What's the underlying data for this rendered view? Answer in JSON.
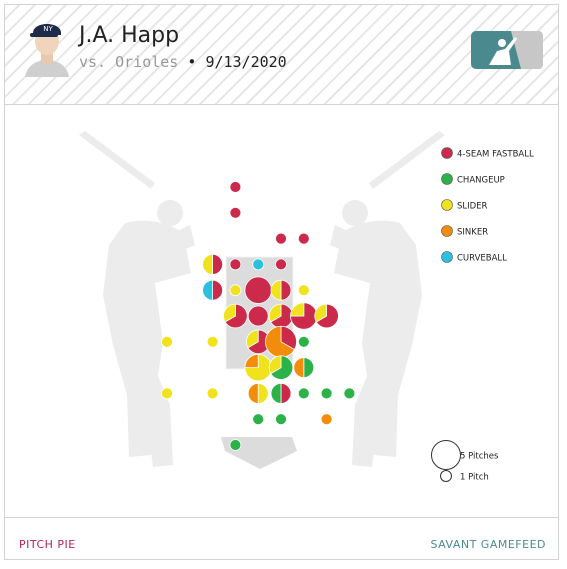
{
  "header": {
    "player_name": "J.A. Happ",
    "matchup": "vs. Orioles",
    "separator": "•",
    "date": "9/13/2020"
  },
  "footer": {
    "left_link": "PITCH PIE",
    "right_link": "SAVANT GAMEFEED"
  },
  "colors": {
    "four_seam": "#cc2a4b",
    "changeup": "#2db24a",
    "slider": "#f0e21c",
    "sinker": "#f28c0a",
    "curveball": "#2bc0de",
    "silhouette": "#ececec",
    "brand": "#4a8a8f"
  },
  "icons": {
    "avatar": "player-headshot-icon",
    "logo": "mlb-logo-icon",
    "batter": "batter-silhouette-icon"
  },
  "chart_data": {
    "type": "scatter",
    "title": "",
    "legend_position": "top-right",
    "series": [
      {
        "key": "four_seam",
        "name": "4-SEAM FASTBALL"
      },
      {
        "key": "changeup",
        "name": "CHANGEUP"
      },
      {
        "key": "slider",
        "name": "SLIDER"
      },
      {
        "key": "sinker",
        "name": "SINKER"
      },
      {
        "key": "curveball",
        "name": "CURVEBALL"
      }
    ],
    "grid": {
      "cols": 10,
      "rows": 13
    },
    "size_legend": [
      {
        "pitches": 5,
        "label": "5 Pitches"
      },
      {
        "pitches": 1,
        "label": "1 Pitch"
      }
    ],
    "pitch_bins": [
      {
        "col": 3,
        "row": 0,
        "counts": {
          "four_seam": 1
        }
      },
      {
        "col": 3,
        "row": 1,
        "counts": {
          "four_seam": 1
        }
      },
      {
        "col": 5,
        "row": 2,
        "counts": {
          "four_seam": 1
        }
      },
      {
        "col": 6,
        "row": 2,
        "counts": {
          "four_seam": 1
        }
      },
      {
        "col": 2,
        "row": 3,
        "counts": {
          "four_seam": 1,
          "slider": 1
        }
      },
      {
        "col": 3,
        "row": 3,
        "counts": {
          "four_seam": 1
        }
      },
      {
        "col": 4,
        "row": 3,
        "counts": {
          "curveball": 1
        }
      },
      {
        "col": 5,
        "row": 3,
        "counts": {
          "four_seam": 1
        }
      },
      {
        "col": 2,
        "row": 4,
        "counts": {
          "four_seam": 1,
          "curveball": 1
        }
      },
      {
        "col": 3,
        "row": 4,
        "counts": {
          "slider": 1
        }
      },
      {
        "col": 4,
        "row": 4,
        "counts": {
          "four_seam": 4
        }
      },
      {
        "col": 5,
        "row": 4,
        "counts": {
          "four_seam": 1,
          "slider": 1
        }
      },
      {
        "col": 6,
        "row": 4,
        "counts": {
          "slider": 1
        }
      },
      {
        "col": 3,
        "row": 5,
        "counts": {
          "four_seam": 2,
          "slider": 1
        }
      },
      {
        "col": 4,
        "row": 5,
        "counts": {
          "four_seam": 2
        }
      },
      {
        "col": 5,
        "row": 5,
        "counts": {
          "four_seam": 2,
          "slider": 1
        }
      },
      {
        "col": 6,
        "row": 5,
        "counts": {
          "four_seam": 3,
          "slider": 1
        }
      },
      {
        "col": 7,
        "row": 5,
        "counts": {
          "four_seam": 2,
          "slider": 1
        }
      },
      {
        "col": 0,
        "row": 6,
        "counts": {
          "slider": 1
        }
      },
      {
        "col": 2,
        "row": 6,
        "counts": {
          "slider": 1
        }
      },
      {
        "col": 4,
        "row": 6,
        "counts": {
          "four_seam": 2,
          "slider": 1
        }
      },
      {
        "col": 5,
        "row": 6,
        "counts": {
          "four_seam": 2,
          "sinker": 4
        }
      },
      {
        "col": 6,
        "row": 6,
        "counts": {
          "changeup": 1
        }
      },
      {
        "col": 4,
        "row": 7,
        "counts": {
          "slider": 3,
          "sinker": 1
        }
      },
      {
        "col": 5,
        "row": 7,
        "counts": {
          "changeup": 2,
          "slider": 1
        }
      },
      {
        "col": 6,
        "row": 7,
        "counts": {
          "sinker": 1,
          "changeup": 1
        }
      },
      {
        "col": 0,
        "row": 8,
        "counts": {
          "slider": 1
        }
      },
      {
        "col": 2,
        "row": 8,
        "counts": {
          "slider": 1
        }
      },
      {
        "col": 4,
        "row": 8,
        "counts": {
          "slider": 1,
          "sinker": 1
        }
      },
      {
        "col": 5,
        "row": 8,
        "counts": {
          "changeup": 1,
          "four_seam": 1
        }
      },
      {
        "col": 6,
        "row": 8,
        "counts": {
          "changeup": 1
        }
      },
      {
        "col": 7,
        "row": 8,
        "counts": {
          "changeup": 1
        }
      },
      {
        "col": 8,
        "row": 8,
        "counts": {
          "changeup": 1
        }
      },
      {
        "col": 4,
        "row": 9,
        "counts": {
          "changeup": 1
        }
      },
      {
        "col": 5,
        "row": 9,
        "counts": {
          "changeup": 1
        }
      },
      {
        "col": 7,
        "row": 9,
        "counts": {
          "sinker": 1
        }
      },
      {
        "col": 3,
        "row": 10,
        "counts": {
          "changeup": 1
        }
      }
    ]
  }
}
